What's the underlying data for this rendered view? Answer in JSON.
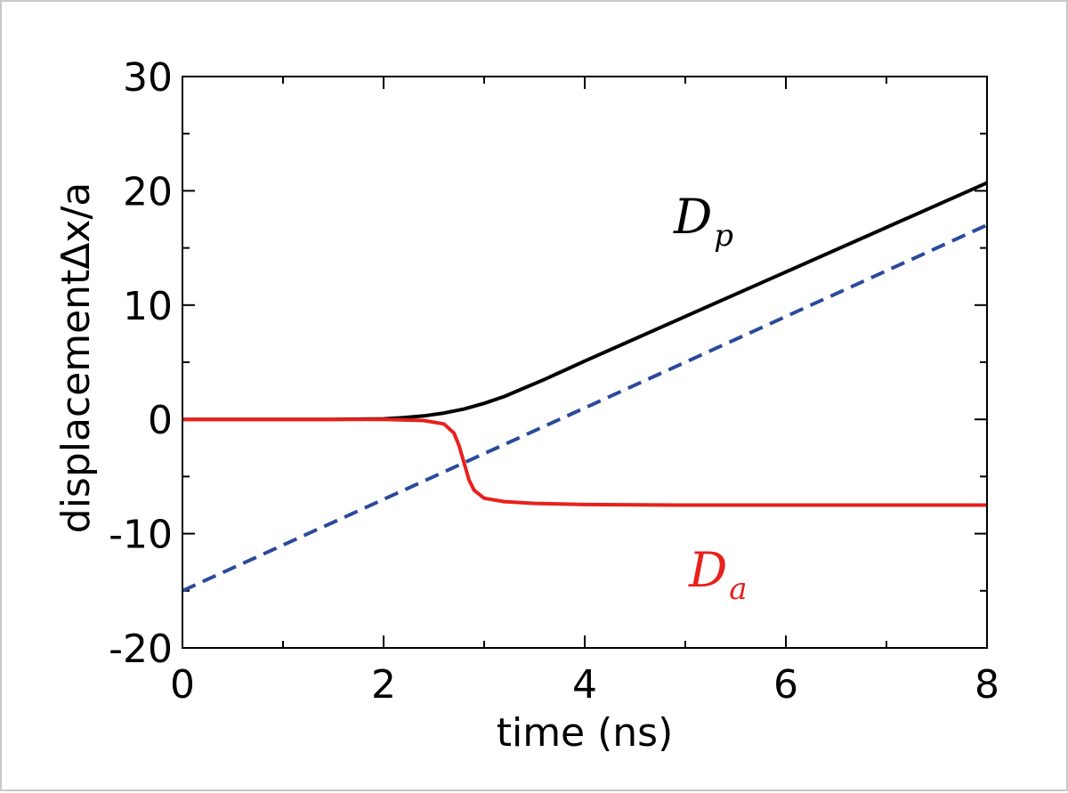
{
  "chart_data": {
    "type": "line",
    "xlabel": "time (ns)",
    "ylabel": "displacementΔx/a",
    "xlim": [
      0,
      8
    ],
    "ylim": [
      -20,
      30
    ],
    "x_ticks": [
      "0",
      "2",
      "4",
      "6",
      "8"
    ],
    "y_ticks": [
      "-20",
      "-10",
      "0",
      "10",
      "20",
      "30"
    ],
    "grid": false,
    "series": [
      {
        "name_main": "D",
        "name_sub": "p",
        "color": "#000000",
        "style": "solid",
        "x": [
          0,
          1.5,
          2.0,
          2.2,
          2.4,
          2.6,
          2.8,
          3.0,
          3.2,
          3.4,
          3.6,
          3.8,
          4.0,
          5.0,
          6.0,
          7.0,
          8.0
        ],
        "y": [
          0,
          0,
          0.05,
          0.15,
          0.3,
          0.55,
          0.9,
          1.4,
          2.0,
          2.75,
          3.5,
          4.3,
          5.1,
          9.0,
          12.9,
          16.8,
          20.7
        ]
      },
      {
        "name_main": "D",
        "name_sub": "a",
        "color": "#e8201c",
        "style": "solid",
        "x": [
          0,
          2.0,
          2.4,
          2.6,
          2.7,
          2.75,
          2.8,
          2.85,
          2.9,
          3.0,
          3.2,
          3.5,
          4.0,
          5.0,
          6.0,
          8.0
        ],
        "y": [
          0,
          0,
          -0.1,
          -0.4,
          -1.2,
          -2.3,
          -3.8,
          -5.3,
          -6.2,
          -6.9,
          -7.2,
          -7.35,
          -7.45,
          -7.5,
          -7.5,
          -7.5
        ]
      },
      {
        "name_main": "",
        "name_sub": "",
        "color": "#2a4a9c",
        "style": "dashed",
        "x": [
          0,
          8
        ],
        "y": [
          -15,
          17
        ]
      }
    ]
  }
}
